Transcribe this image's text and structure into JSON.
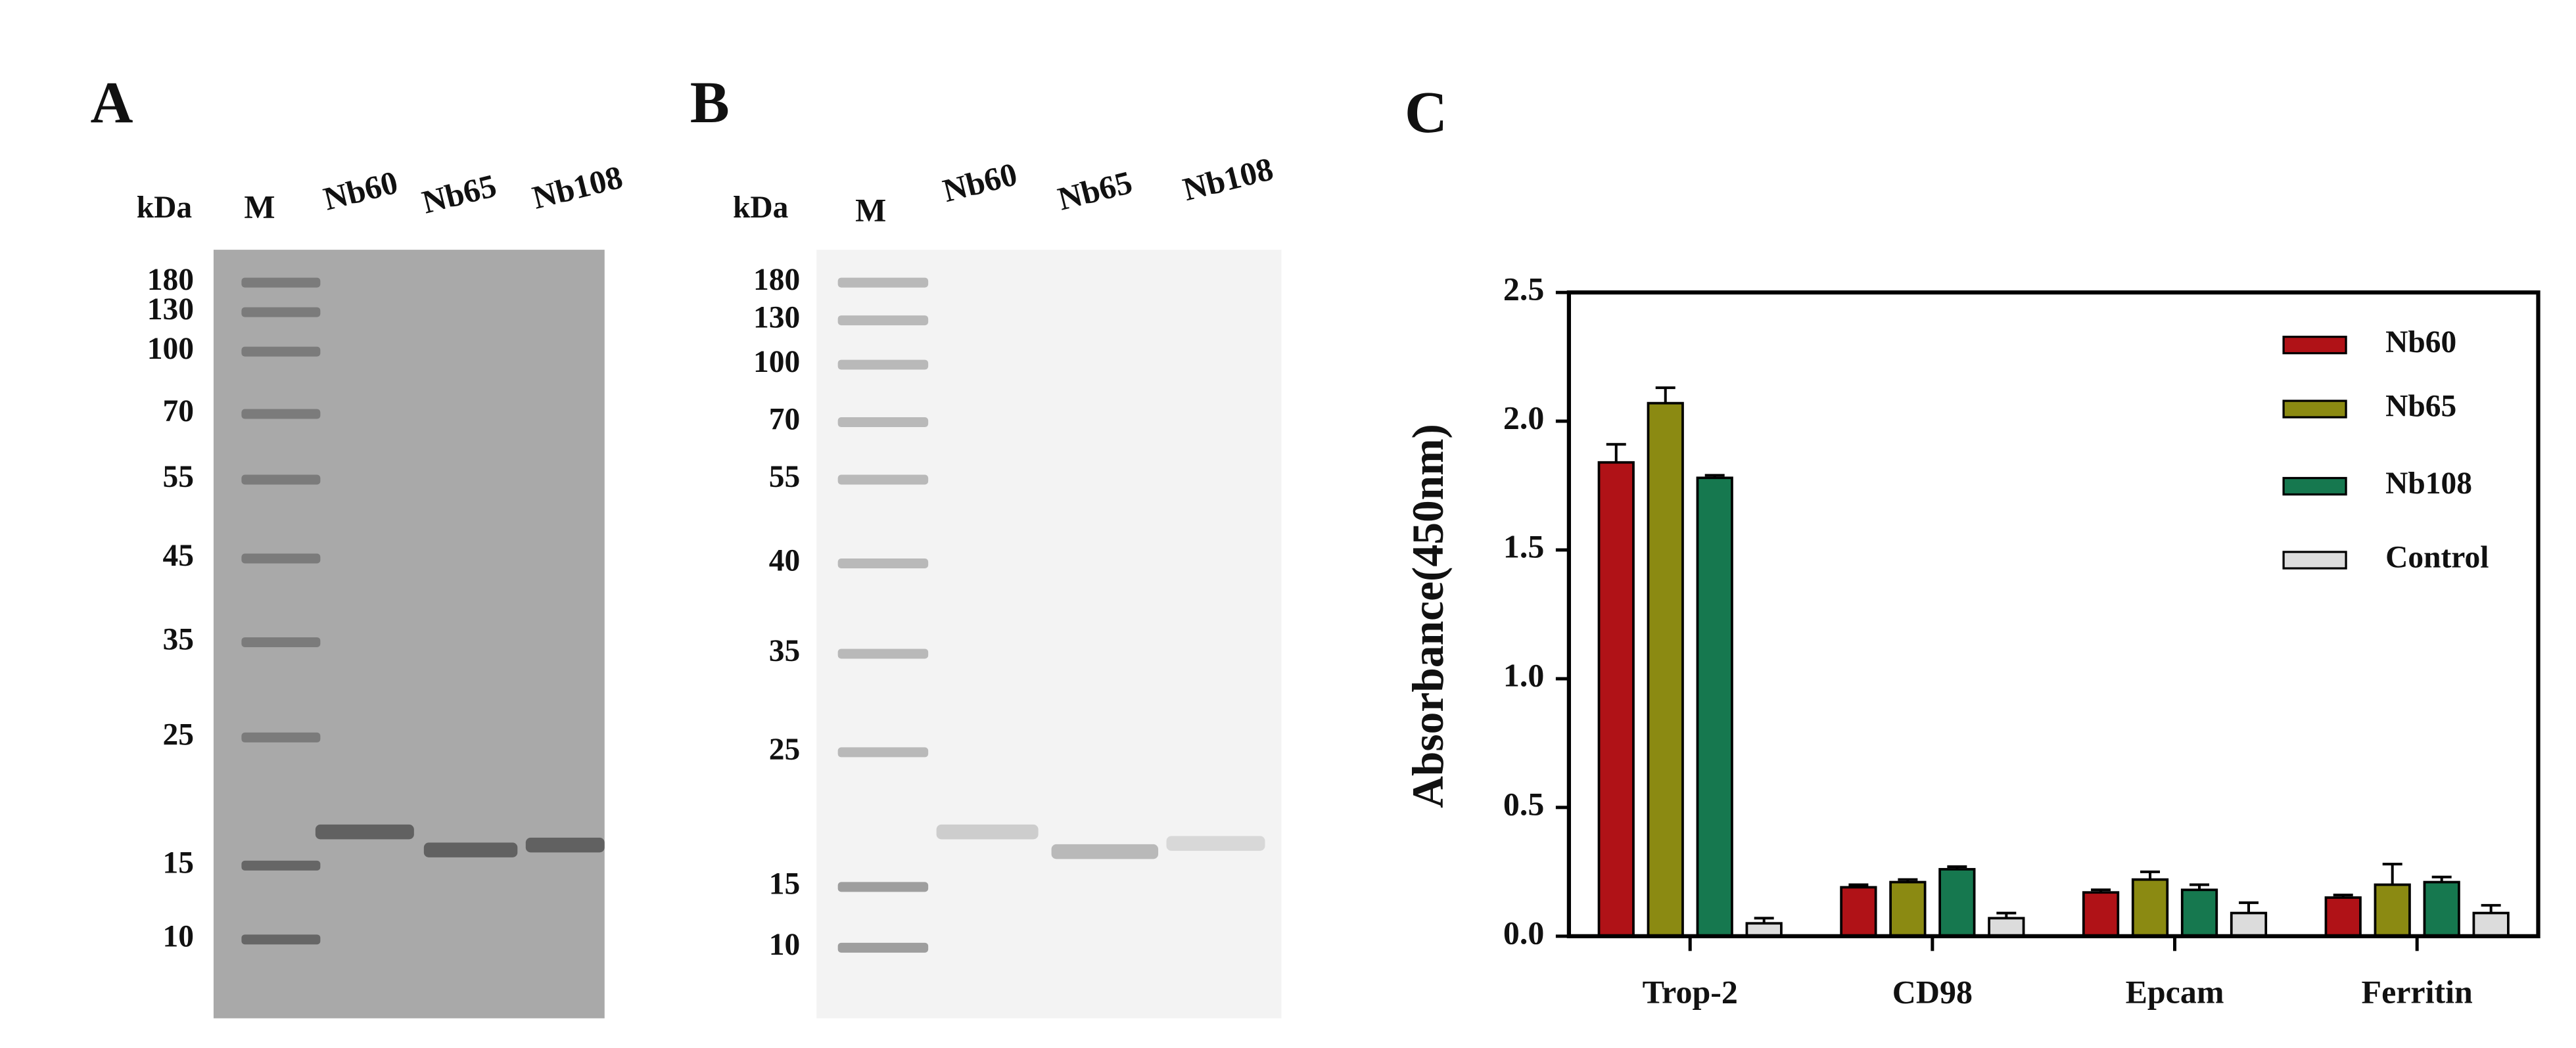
{
  "gels": [
    {
      "panel": "A",
      "unit": "kDa",
      "marker_lane": "M",
      "lanes": [
        "Nb60",
        "Nb65",
        "Nb108"
      ],
      "marker_labels": [
        "180",
        "130",
        "100",
        "70",
        "55",
        "45",
        "35",
        "25",
        "15",
        "10"
      ]
    },
    {
      "panel": "B",
      "unit": "kDa",
      "marker_lane": "M",
      "lanes": [
        "Nb60",
        "Nb65",
        "Nb108"
      ],
      "marker_labels": [
        "180",
        "130",
        "100",
        "70",
        "55",
        "40",
        "35",
        "25",
        "15",
        "10"
      ]
    }
  ],
  "chart_data": {
    "type": "bar",
    "panel_label": "C",
    "ylabel": "Absorbance(450nm)",
    "categories": [
      "Trop-2",
      "CD98",
      "Epcam",
      "Ferritin"
    ],
    "series": [
      {
        "name": "Nb60",
        "color": "#b01217",
        "values": [
          1.84,
          0.19,
          0.17,
          0.15
        ],
        "errors": [
          0.07,
          0.01,
          0.01,
          0.01
        ]
      },
      {
        "name": "Nb65",
        "color": "#8b8a12",
        "values": [
          2.07,
          0.21,
          0.22,
          0.2
        ],
        "errors": [
          0.06,
          0.01,
          0.03,
          0.08
        ]
      },
      {
        "name": "Nb108",
        "color": "#16784f",
        "values": [
          1.78,
          0.26,
          0.18,
          0.21
        ],
        "errors": [
          0.01,
          0.01,
          0.02,
          0.02
        ]
      },
      {
        "name": "Control",
        "color": "#dcdcdc",
        "values": [
          0.05,
          0.07,
          0.09,
          0.09
        ],
        "errors": [
          0.02,
          0.02,
          0.04,
          0.03
        ]
      }
    ],
    "ylim": [
      0,
      2.5
    ],
    "yticks": [
      {
        "value": 0,
        "label": "0.0"
      },
      {
        "value": 0.5,
        "label": "0.5"
      },
      {
        "value": 1,
        "label": "1.0"
      },
      {
        "value": 1.5,
        "label": "1.5"
      },
      {
        "value": 2,
        "label": "2.0"
      },
      {
        "value": 2.5,
        "label": "2.5"
      }
    ],
    "legend": "top-right"
  }
}
